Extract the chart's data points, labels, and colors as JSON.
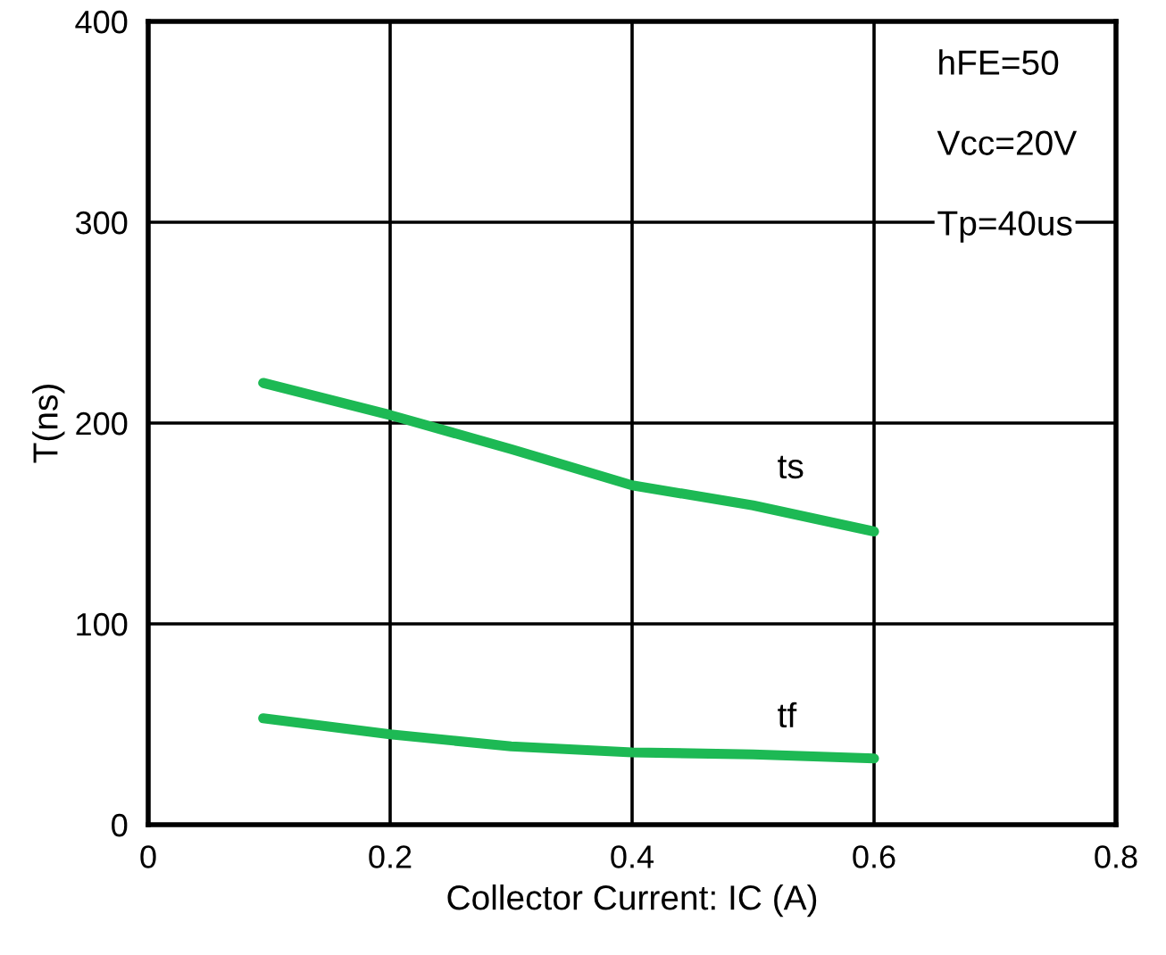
{
  "chart_data": {
    "type": "line",
    "xlabel": "Collector Current: IC (A)",
    "ylabel": "T(ns)",
    "xlim": [
      0,
      0.8
    ],
    "xticks": [
      0,
      0.2,
      0.4,
      0.6,
      0.8
    ],
    "ylim": [
      0,
      400
    ],
    "yticks": [
      0,
      100,
      200,
      300,
      400
    ],
    "grid": true,
    "legend": false,
    "marker": "none",
    "line_style": "solid",
    "series": [
      {
        "color": "#1db954",
        "x": [
          0.095,
          0.2,
          0.3,
          0.4,
          0.5,
          0.6
        ],
        "values": [
          220,
          204,
          187,
          169,
          159,
          146
        ]
      },
      {
        "color": "#1db954",
        "x": [
          0.095,
          0.2,
          0.3,
          0.4,
          0.5,
          0.6
        ],
        "values": [
          53,
          45,
          39,
          36,
          35,
          33
        ]
      }
    ],
    "annotations": [
      "ts",
      "tf",
      "hFE=50",
      "Vcc=20V",
      "Tp=40us"
    ]
  }
}
